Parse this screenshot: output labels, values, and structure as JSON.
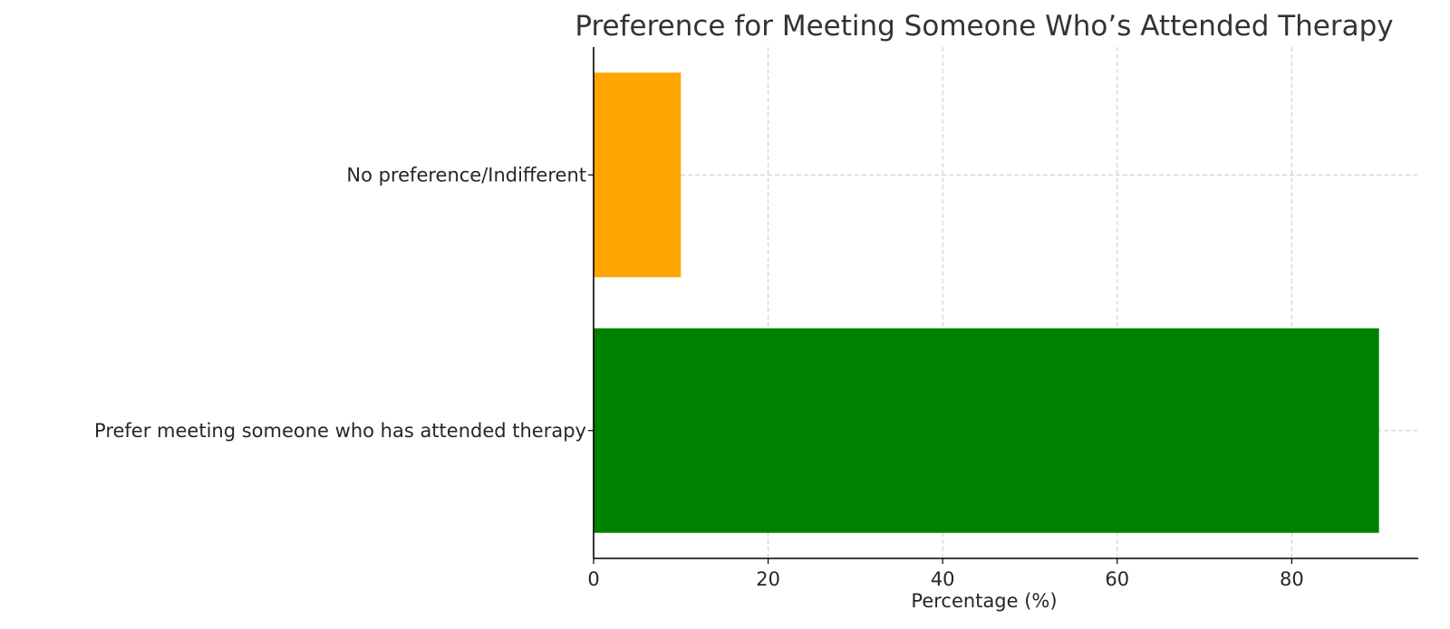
{
  "chart_data": {
    "type": "bar",
    "orientation": "horizontal",
    "title": "Preference for Meeting Someone Who’s Attended Therapy",
    "xlabel": "Percentage (%)",
    "ylabel": "",
    "categories": [
      "Prefer meeting someone who has attended therapy",
      "No preference/Indifferent"
    ],
    "values": [
      90,
      10
    ],
    "bar_colors": [
      "#008000",
      "#FFA500"
    ],
    "xlim": [
      0,
      94.5
    ],
    "xticks": [
      0,
      20,
      40,
      60,
      80
    ],
    "grid": true,
    "legend": "none"
  }
}
